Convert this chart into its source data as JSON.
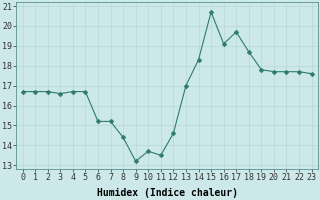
{
  "x": [
    0,
    1,
    2,
    3,
    4,
    5,
    6,
    7,
    8,
    9,
    10,
    11,
    12,
    13,
    14,
    15,
    16,
    17,
    18,
    19,
    20,
    21,
    22,
    23
  ],
  "y": [
    16.7,
    16.7,
    16.7,
    16.6,
    16.7,
    16.7,
    15.2,
    15.2,
    14.4,
    13.2,
    13.7,
    13.5,
    14.6,
    17.0,
    18.3,
    20.7,
    19.1,
    19.7,
    18.7,
    17.8,
    17.7,
    17.7,
    17.7,
    17.6
  ],
  "xlabel": "Humidex (Indice chaleur)",
  "xlim": [
    -0.5,
    23.5
  ],
  "ylim": [
    12.8,
    21.2
  ],
  "xticks": [
    0,
    1,
    2,
    3,
    4,
    5,
    6,
    7,
    8,
    9,
    10,
    11,
    12,
    13,
    14,
    15,
    16,
    17,
    18,
    19,
    20,
    21,
    22,
    23
  ],
  "yticks": [
    13,
    14,
    15,
    16,
    17,
    18,
    19,
    20,
    21
  ],
  "line_color": "#2e7b6e",
  "marker": "D",
  "marker_size": 2.5,
  "bg_color": "#cce8e8",
  "grid_color": "#b8d8d8",
  "label_fontsize": 7,
  "tick_fontsize": 6
}
